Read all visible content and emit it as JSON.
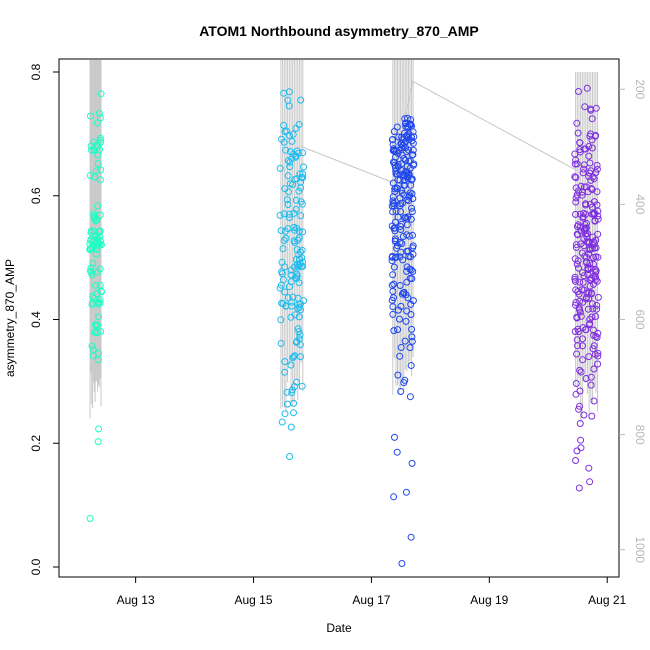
{
  "chart_data": {
    "type": "scatter",
    "title": "ATOM1 Northbound asymmetry_870_AMP",
    "xlabel": "Date",
    "ylabel": "asymmetry_870_AMP",
    "x_unit": "days since Aug 12 00:00",
    "xlim": [
      11.7,
      21.2
    ],
    "ylim": [
      0.0,
      0.8
    ],
    "y_ticks": [
      "0.0",
      "0.2",
      "0.4",
      "0.6",
      "0.8"
    ],
    "x_ticks": [
      {
        "label": "Aug 13",
        "x": 13
      },
      {
        "label": "Aug 15",
        "x": 15
      },
      {
        "label": "Aug 17",
        "x": 17
      },
      {
        "label": "Aug 19",
        "x": 19
      },
      {
        "label": "Aug 21",
        "x": 21
      }
    ],
    "right_axis": {
      "ylim": [
        1030,
        170
      ],
      "ticks": [
        "200",
        "400",
        "600",
        "800",
        "1000"
      ],
      "color": "#b8b8b8"
    },
    "line_color": "#c8c8c8",
    "series": [
      {
        "name": "Aug 12",
        "color": "#1affc4",
        "x_range": [
          12.22,
          12.42
        ],
        "points_by_y": [
          {
            "y": 0.68,
            "n": 12
          },
          {
            "y": 0.64,
            "n": 6
          },
          {
            "y": 0.57,
            "n": 8
          },
          {
            "y": 0.53,
            "n": 26
          },
          {
            "y": 0.5,
            "n": 6
          },
          {
            "y": 0.47,
            "n": 8
          },
          {
            "y": 0.43,
            "n": 12
          },
          {
            "y": 0.39,
            "n": 8
          },
          {
            "y": 0.35,
            "n": 5
          },
          {
            "y": 0.72,
            "n": 4
          },
          {
            "y": 0.78,
            "n": 1
          },
          {
            "y": 0.22,
            "n": 1
          },
          {
            "y": 0.19,
            "n": 1
          },
          {
            "y": 0.09,
            "n": 1
          }
        ],
        "line_top": 0.82,
        "line_bottom": 0.24
      },
      {
        "name": "Aug 15",
        "color": "#1cbcf0",
        "x_range": [
          15.45,
          15.85
        ],
        "points_by_y": [
          {
            "y": 0.7,
            "n": 10
          },
          {
            "y": 0.66,
            "n": 14
          },
          {
            "y": 0.62,
            "n": 14
          },
          {
            "y": 0.58,
            "n": 12
          },
          {
            "y": 0.54,
            "n": 14
          },
          {
            "y": 0.5,
            "n": 16
          },
          {
            "y": 0.47,
            "n": 14
          },
          {
            "y": 0.44,
            "n": 12
          },
          {
            "y": 0.41,
            "n": 10
          },
          {
            "y": 0.37,
            "n": 8
          },
          {
            "y": 0.33,
            "n": 7
          },
          {
            "y": 0.29,
            "n": 6
          },
          {
            "y": 0.26,
            "n": 4
          },
          {
            "y": 0.75,
            "n": 3
          },
          {
            "y": 0.78,
            "n": 2
          },
          {
            "y": 0.23,
            "n": 2
          },
          {
            "y": 0.18,
            "n": 1
          }
        ],
        "line_top": 0.82,
        "line_bottom": 0.25
      },
      {
        "name": "Aug 17",
        "color": "#1e46ee",
        "x_range": [
          17.35,
          17.72
        ],
        "points_by_y": [
          {
            "y": 0.71,
            "n": 22
          },
          {
            "y": 0.68,
            "n": 28
          },
          {
            "y": 0.65,
            "n": 26
          },
          {
            "y": 0.62,
            "n": 24
          },
          {
            "y": 0.59,
            "n": 20
          },
          {
            "y": 0.56,
            "n": 16
          },
          {
            "y": 0.53,
            "n": 14
          },
          {
            "y": 0.5,
            "n": 14
          },
          {
            "y": 0.47,
            "n": 12
          },
          {
            "y": 0.44,
            "n": 10
          },
          {
            "y": 0.41,
            "n": 8
          },
          {
            "y": 0.38,
            "n": 6
          },
          {
            "y": 0.34,
            "n": 4
          },
          {
            "y": 0.31,
            "n": 3
          },
          {
            "y": 0.28,
            "n": 2
          },
          {
            "y": 0.22,
            "n": 1
          },
          {
            "y": 0.2,
            "n": 1
          },
          {
            "y": 0.16,
            "n": 1
          },
          {
            "y": 0.11,
            "n": 2
          },
          {
            "y": 0.06,
            "n": 1
          },
          {
            "y": 0.01,
            "n": 1
          }
        ],
        "line_top": 0.82,
        "line_bottom": 0.27
      },
      {
        "name": "Aug 20",
        "color": "#7e2ee0",
        "x_range": [
          20.45,
          20.85
        ],
        "points_by_y": [
          {
            "y": 0.73,
            "n": 6
          },
          {
            "y": 0.69,
            "n": 10
          },
          {
            "y": 0.66,
            "n": 12
          },
          {
            "y": 0.63,
            "n": 14
          },
          {
            "y": 0.6,
            "n": 16
          },
          {
            "y": 0.57,
            "n": 18
          },
          {
            "y": 0.54,
            "n": 20
          },
          {
            "y": 0.51,
            "n": 22
          },
          {
            "y": 0.48,
            "n": 22
          },
          {
            "y": 0.45,
            "n": 20
          },
          {
            "y": 0.42,
            "n": 16
          },
          {
            "y": 0.39,
            "n": 14
          },
          {
            "y": 0.36,
            "n": 10
          },
          {
            "y": 0.33,
            "n": 8
          },
          {
            "y": 0.3,
            "n": 6
          },
          {
            "y": 0.27,
            "n": 4
          },
          {
            "y": 0.24,
            "n": 3
          },
          {
            "y": 0.2,
            "n": 3
          },
          {
            "y": 0.17,
            "n": 2
          },
          {
            "y": 0.14,
            "n": 2
          },
          {
            "y": 0.76,
            "n": 2
          }
        ],
        "line_top": 0.8,
        "line_bottom": 0.23
      }
    ],
    "connector_line": [
      {
        "x": 15.8,
        "y": 0.68
      },
      {
        "x": 17.35,
        "y": 0.622
      },
      {
        "x": 17.7,
        "y": 0.785
      },
      {
        "x": 20.5,
        "y": 0.64
      }
    ]
  }
}
